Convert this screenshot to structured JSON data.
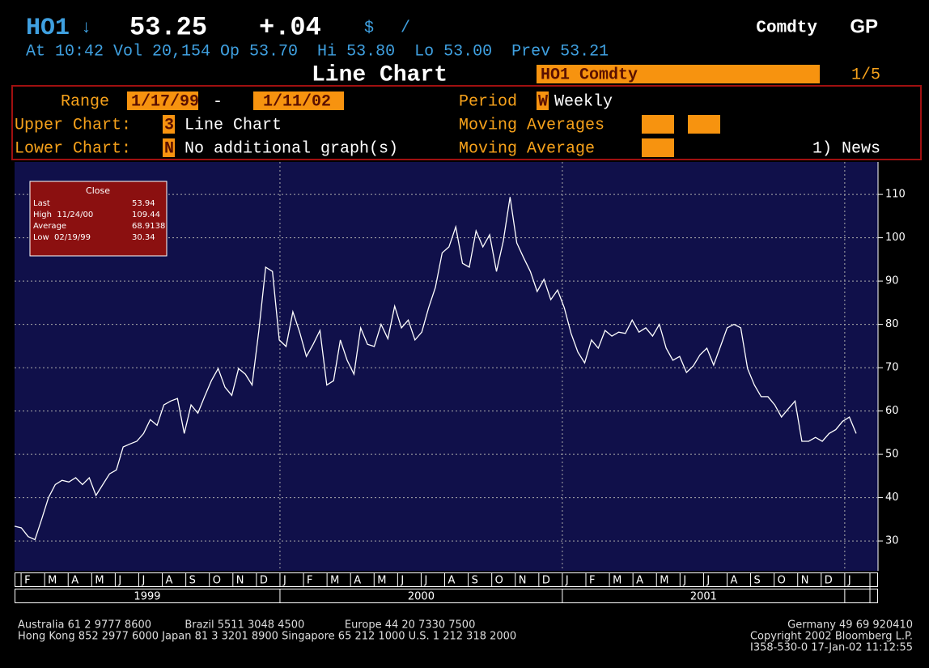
{
  "header": {
    "ticker": "HO1",
    "arrow": "↓",
    "price": "53.25",
    "change": "+.04",
    "currency": "$",
    "slash": "/",
    "market": "Comdty",
    "function": "GP",
    "quote_line": "At 10:42 Vol 20,154 Op 53.70  Hi 53.80  Lo 53.00  Prev 53.21",
    "screen_title": "Line Chart",
    "security": "HO1 Comdty",
    "page": "1/5"
  },
  "settings": {
    "range_label": "Range",
    "range_start": "1/17/99",
    "range_dash": "-",
    "range_end": "1/11/02",
    "period_label": "Period",
    "period_code": "W",
    "period_value": "Weekly",
    "upper_label": "Upper Chart:",
    "upper_code": "3",
    "upper_value": "Line Chart",
    "lower_label": "Lower Chart:",
    "lower_code": "N",
    "lower_value": "No additional graph(s)",
    "ma_upper_label": "Moving Averages",
    "ma_lower_label": "Moving Average",
    "news": "1) News"
  },
  "chart_data": {
    "type": "line",
    "series": [
      {
        "name": "Close",
        "color": "#ffffff",
        "values": [
          33.4,
          33,
          31,
          30.3,
          35,
          40,
          43,
          44,
          43.6,
          44.6,
          43,
          44.6,
          40.5,
          43,
          45.5,
          46.4,
          51.7,
          52.4,
          53,
          54.8,
          58,
          56.7,
          61.4,
          62.3,
          62.9,
          54.8,
          61.4,
          59.5,
          63.3,
          67,
          69.8,
          65.5,
          63.6,
          69.8,
          68.5,
          66,
          78.6,
          93.2,
          92.2,
          76.4,
          74.9,
          82.9,
          78.2,
          72.6,
          75.4,
          78.6,
          66,
          67,
          76.4,
          71.7,
          68.5,
          79.2,
          75.4,
          74.9,
          80,
          76.7,
          84.2,
          79.2,
          81,
          76.4,
          78.2,
          83.8,
          88.5,
          96.5,
          97.9,
          102.5,
          94.1,
          93.2,
          101.6,
          97.9,
          100.7,
          92.2,
          99.2,
          109.4,
          98.8,
          95.4,
          92.2,
          87.6,
          90.4,
          85.7,
          87.9,
          83.8,
          77.9,
          73.6,
          71.1,
          76.4,
          74.5,
          78.6,
          77.3,
          78.2,
          77.9,
          81,
          78.2,
          79.2,
          77.3,
          80,
          74.5,
          71.7,
          72.6,
          68.9,
          70.4,
          73,
          74.5,
          70.6,
          74.9,
          79.2,
          80,
          79.2,
          69.8,
          66,
          63.3,
          63.3,
          61.4,
          58.6,
          60.5,
          62.3,
          53,
          53,
          53.9,
          53,
          54.8,
          55.7,
          57.6,
          58.6,
          54.8
        ]
      }
    ],
    "ylim": [
      23.1,
      117.5
    ],
    "yticks": [
      30,
      40,
      50,
      60,
      70,
      80,
      90,
      100,
      110
    ],
    "grid": true,
    "month_labels": [
      "F",
      "M",
      "A",
      "M",
      "J",
      "J",
      "A",
      "S",
      "O",
      "N",
      "D",
      "J",
      "F",
      "M",
      "A",
      "M",
      "J",
      "J",
      "A",
      "S",
      "O",
      "N",
      "D",
      "J",
      "F",
      "M",
      "A",
      "M",
      "J",
      "J",
      "A",
      "S",
      "O",
      "N",
      "D",
      "J"
    ],
    "years": [
      "1999",
      "2000",
      "2001"
    ],
    "stats": {
      "title": "Close",
      "rows": [
        [
          "Last",
          "53.94"
        ],
        [
          "High  11/24/00",
          "109.44"
        ],
        [
          "Average",
          "68.9138"
        ],
        [
          "Low  02/19/99",
          "30.34"
        ]
      ]
    }
  },
  "footer": {
    "line1": "Australia 61 2 9777 8600          Brazil 5511 3048 4500            Europe 44 20 7330 7500",
    "line2": "Hong Kong 852 2977 6000 Japan 81 3 3201 8900 Singapore 65 212 1000 U.S. 1 212 318 2000",
    "right1": "Germany 49 69 920410",
    "right2": "Copyright 2002 Bloomberg L.P.",
    "right3": "I358-530-0 17-Jan-02 11:12:55"
  }
}
